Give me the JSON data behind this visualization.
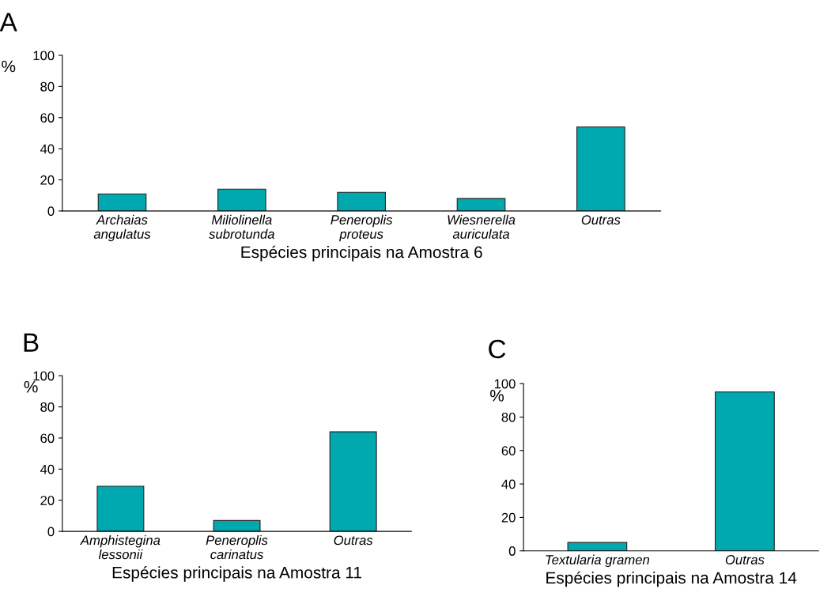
{
  "chart_data": [
    {
      "type": "bar",
      "title": "A",
      "ylabel": "%",
      "xlabel": "Espécies principais na Amostra 6",
      "categories": [
        "Archaias\nangulatus",
        "Miliolinella\nsubrotunda",
        "Peneroplis\nproteus",
        "Wiesnerella\nauriculata",
        "Outras"
      ],
      "values": [
        11,
        14,
        12,
        8,
        54
      ],
      "color": "#00a8b0",
      "ylim": [
        0,
        100
      ],
      "yticks": [
        0,
        20,
        40,
        60,
        80,
        100
      ],
      "grid": false
    },
    {
      "type": "bar",
      "title": "B",
      "ylabel": "%",
      "xlabel": "Espécies principais na Amostra 11",
      "categories": [
        "Amphistegina\nlessonii",
        "Peneroplis\ncarinatus",
        "Outras"
      ],
      "values": [
        29,
        7,
        64
      ],
      "color": "#00a8b0",
      "ylim": [
        0,
        100
      ],
      "yticks": [
        0,
        20,
        40,
        60,
        80,
        100
      ],
      "grid": false
    },
    {
      "type": "bar",
      "title": "C",
      "ylabel": "%",
      "xlabel": "Espécies principais na Amostra 14",
      "categories": [
        "Textularia gramen",
        "Outras"
      ],
      "values": [
        5,
        95
      ],
      "color": "#00a8b0",
      "ylim": [
        0,
        100
      ],
      "yticks": [
        0,
        20,
        40,
        60,
        80,
        100
      ],
      "grid": false
    }
  ]
}
